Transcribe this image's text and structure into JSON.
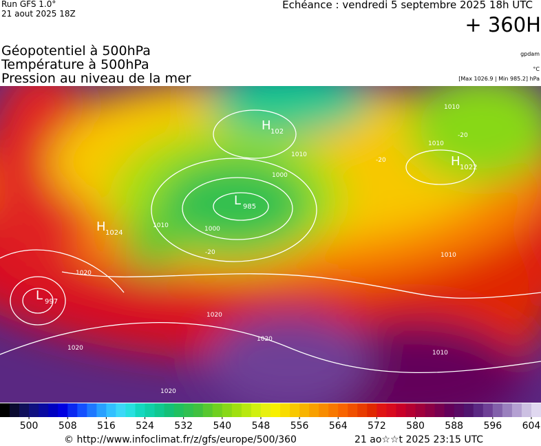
{
  "header": {
    "run": "Run GFS 1.0°",
    "run_date": "21 aout 2025 18Z",
    "valid": "Echéance : vendredi 5 septembre 2025 18h UTC",
    "lead": "+ 360H"
  },
  "titles": [
    "Géopotentiel à 500hPa",
    "Température à 500hPa",
    "Pression au niveau de la mer"
  ],
  "units": {
    "geopotential": "gpdam",
    "temperature": "°C",
    "pressure": "[Max 1026.9 | Min 985.2] hPa"
  },
  "map": {
    "centers": [
      {
        "type": "H",
        "value": "1022"
      },
      {
        "type": "L",
        "value": "985"
      },
      {
        "type": "L",
        "value": "997"
      },
      {
        "type": "H",
        "value": "1024"
      },
      {
        "type": "H",
        "value": "102"
      }
    ],
    "contour_labels": [
      "1000",
      "1010",
      "1020",
      "1020",
      "1020",
      "1020",
      "1020",
      "1010",
      "1000",
      "1010",
      "1010",
      "-20",
      "-20",
      "-20",
      "1010",
      "1010"
    ]
  },
  "colorbar": {
    "lim": [
      494,
      606
    ],
    "ticks": [
      500,
      508,
      516,
      524,
      532,
      540,
      548,
      556,
      564,
      572,
      580,
      588,
      596,
      604
    ],
    "colors": [
      "#000000",
      "#0a0a30",
      "#10105a",
      "#101080",
      "#0a0aa0",
      "#0000c0",
      "#0000e0",
      "#0a28f0",
      "#1450ff",
      "#1e78ff",
      "#28a0ff",
      "#32c0ff",
      "#3cd8f8",
      "#28e0e0",
      "#14d8c0",
      "#10d0a8",
      "#10c890",
      "#14c078",
      "#20c060",
      "#30c050",
      "#40c040",
      "#58c830",
      "#70d020",
      "#88d818",
      "#a0e010",
      "#b8e810",
      "#d0f010",
      "#e8f010",
      "#f8f000",
      "#f8dc00",
      "#f8c800",
      "#f8b400",
      "#f8a000",
      "#f88c00",
      "#f87800",
      "#f86400",
      "#f05000",
      "#e83c00",
      "#e02800",
      "#e01414",
      "#d80a1e",
      "#c80028",
      "#b40032",
      "#a0003c",
      "#8c0046",
      "#780050",
      "#64005a",
      "#5a0a64",
      "#50146e",
      "#5a2882",
      "#6e4096",
      "#8260aa",
      "#9a80be",
      "#b4a0d2",
      "#ccc0e2",
      "#e0d8f0"
    ]
  },
  "footer": {
    "source": "© http://www.infoclimat.fr/z/gfs/europe/500/360",
    "generated": "21 ao☆☆t 2025 23:15 UTC"
  }
}
